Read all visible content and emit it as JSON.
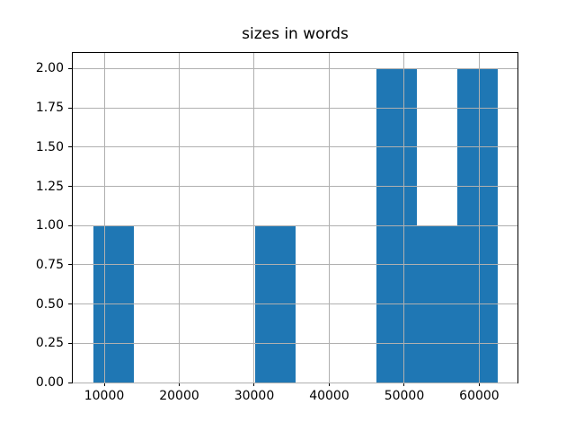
{
  "figure": {
    "background_color": "#ffffff"
  },
  "chart_data": {
    "type": "bar",
    "subtype": "histogram",
    "title": "sizes in words",
    "xlabel": "",
    "ylabel": "",
    "grid": true,
    "legend_position": "none",
    "bar_color": "#1f77b4",
    "grid_color": "#b0b0b0",
    "axis_color": "#000000",
    "bin_edges": [
      8500,
      13890,
      19280,
      24670,
      30060,
      35450,
      40840,
      46230,
      51620,
      57010,
      62400
    ],
    "counts": [
      1,
      0,
      0,
      0,
      1,
      0,
      0,
      2,
      1,
      2
    ],
    "xlim": [
      5805,
      65095
    ],
    "ylim": [
      0,
      2.1
    ],
    "xticks": [
      {
        "value": 10000,
        "label": "10000"
      },
      {
        "value": 20000,
        "label": "20000"
      },
      {
        "value": 30000,
        "label": "30000"
      },
      {
        "value": 40000,
        "label": "40000"
      },
      {
        "value": 50000,
        "label": "50000"
      },
      {
        "value": 60000,
        "label": "60000"
      }
    ],
    "yticks": [
      {
        "value": 0.0,
        "label": "0.00"
      },
      {
        "value": 0.25,
        "label": "0.25"
      },
      {
        "value": 0.5,
        "label": "0.50"
      },
      {
        "value": 0.75,
        "label": "0.75"
      },
      {
        "value": 1.0,
        "label": "1.00"
      },
      {
        "value": 1.25,
        "label": "1.25"
      },
      {
        "value": 1.5,
        "label": "1.50"
      },
      {
        "value": 1.75,
        "label": "1.75"
      },
      {
        "value": 2.0,
        "label": "2.00"
      }
    ]
  }
}
